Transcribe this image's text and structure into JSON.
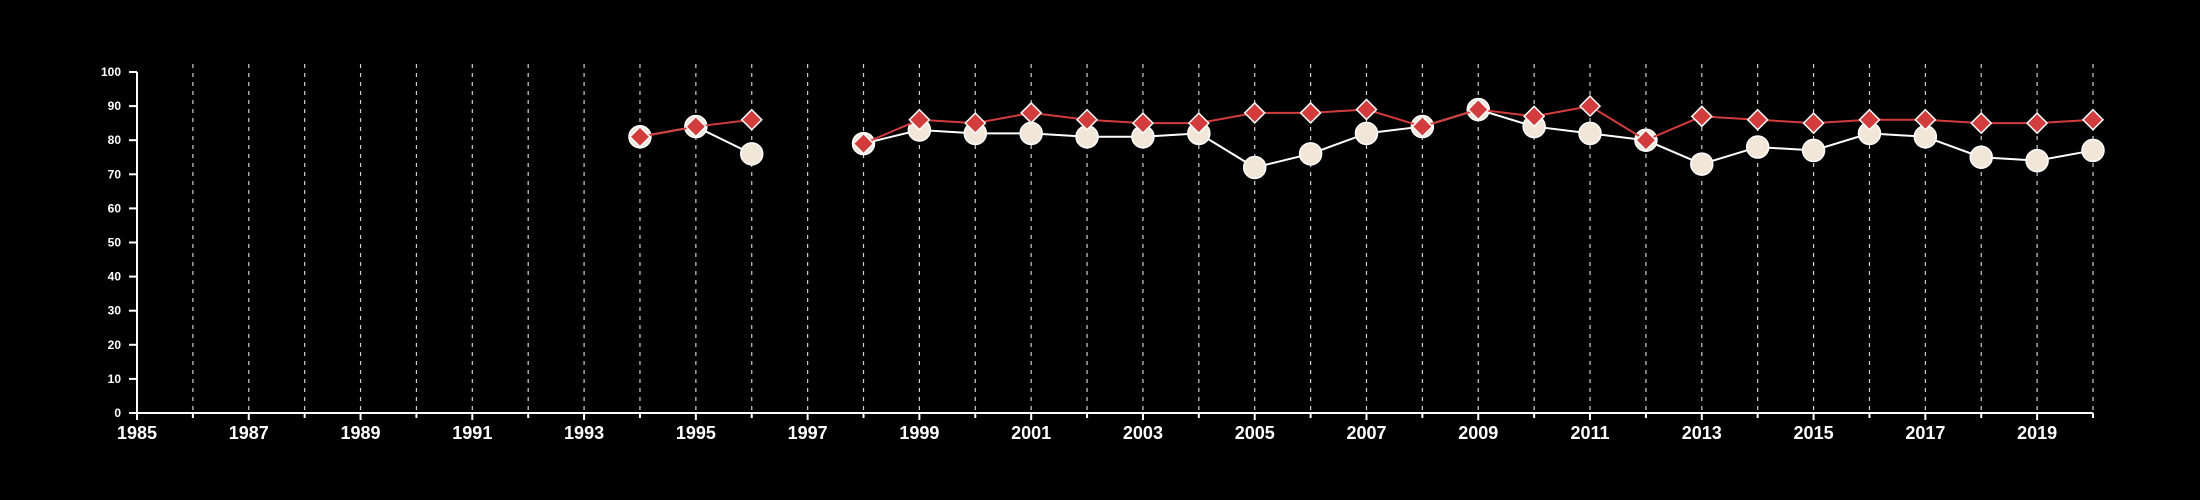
{
  "chart_data": {
    "type": "line",
    "title": "",
    "xlabel": "",
    "ylabel": "",
    "xlim": [
      1985,
      2020
    ],
    "ylim": [
      0,
      100
    ],
    "y_ticks": [
      0,
      10,
      20,
      30,
      40,
      50,
      60,
      70,
      80,
      90,
      100
    ],
    "x_tick_labels": [
      "1985",
      "1987",
      "1989",
      "1991",
      "1993",
      "1995",
      "1997",
      "1999",
      "2001",
      "2003",
      "2005",
      "2007",
      "2009",
      "2011",
      "2013",
      "2015",
      "2017",
      "2019"
    ],
    "x_minor_ticks": [
      1986,
      1987,
      1988,
      1989,
      1990,
      1991,
      1992,
      1993,
      1994,
      1995,
      1996,
      1997,
      1998,
      1999,
      2000,
      2001,
      2002,
      2003,
      2004,
      2005,
      2006,
      2007,
      2008,
      2009,
      2010,
      2011,
      2012,
      2013,
      2014,
      2015,
      2016,
      2017,
      2018,
      2019,
      2020
    ],
    "grid": "vertical dashed",
    "background": "#000000",
    "series": [
      {
        "marker": "circle",
        "color": "#f2e6d8",
        "line_color": "#ffffff",
        "x": [
          1994,
          1995,
          1996,
          1998,
          1999,
          2000,
          2001,
          2002,
          2003,
          2004,
          2005,
          2006,
          2007,
          2008,
          2009,
          2010,
          2011,
          2012,
          2013,
          2014,
          2015,
          2016,
          2017,
          2018,
          2019,
          2020
        ],
        "y": [
          81,
          84,
          76,
          79,
          83,
          82,
          82,
          81,
          81,
          82,
          72,
          76,
          82,
          84,
          89,
          84,
          82,
          80,
          73,
          78,
          77,
          82,
          81,
          75,
          74,
          77
        ]
      },
      {
        "marker": "diamond",
        "color": "#d23c3c",
        "line_color": "#d23c3c",
        "x": [
          1994,
          1995,
          1996,
          1998,
          1999,
          2000,
          2001,
          2002,
          2003,
          2004,
          2005,
          2006,
          2007,
          2008,
          2009,
          2010,
          2011,
          2012,
          2013,
          2014,
          2015,
          2016,
          2017,
          2018,
          2019,
          2020
        ],
        "y": [
          81,
          84,
          86,
          79,
          86,
          85,
          88,
          86,
          85,
          85,
          88,
          88,
          89,
          84,
          89,
          87,
          90,
          80,
          87,
          86,
          85,
          86,
          86,
          85,
          85,
          86
        ]
      }
    ]
  }
}
